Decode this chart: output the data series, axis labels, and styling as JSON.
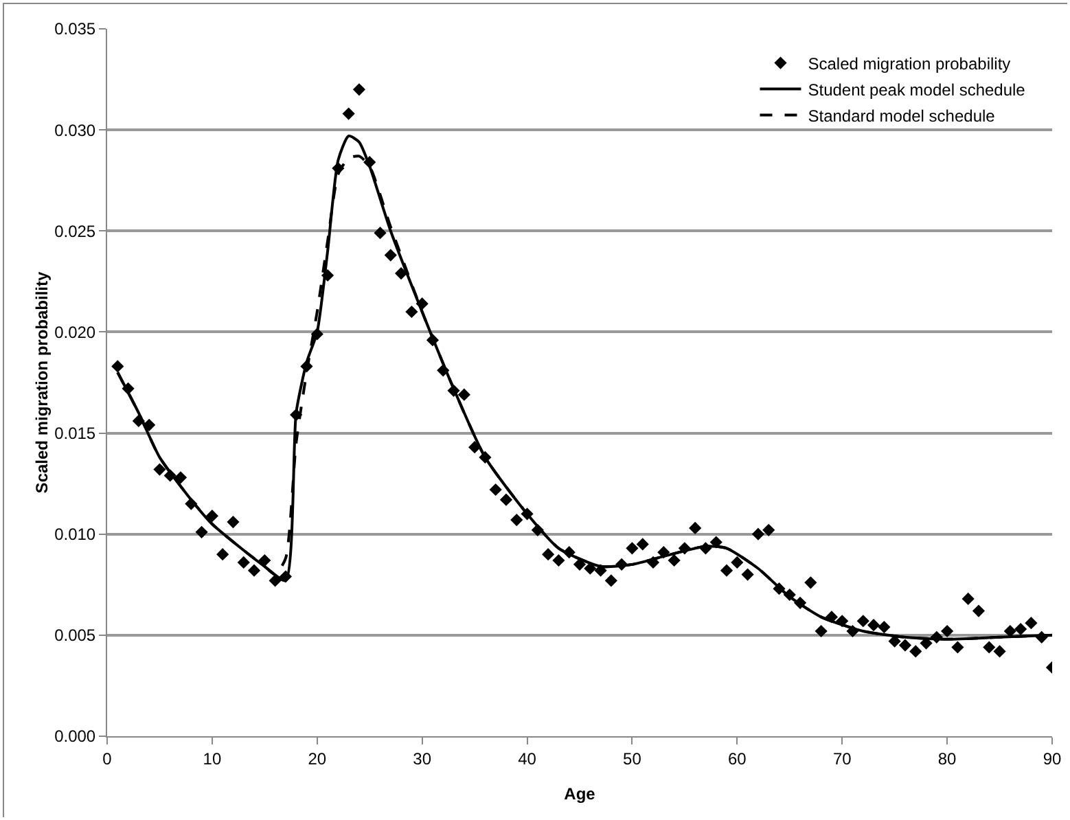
{
  "chart_data": {
    "type": "scatter",
    "xlabel": "Age",
    "ylabel": "Scaled migration probability",
    "xlim": [
      0,
      90
    ],
    "xticks": [
      0,
      10,
      20,
      30,
      40,
      50,
      60,
      70,
      80,
      90
    ],
    "ylim": [
      0,
      0.035
    ],
    "yticks": [
      {
        "value": 0,
        "label": "0.000"
      },
      {
        "value": 0.005,
        "label": "0.005"
      },
      {
        "value": 0.01,
        "label": "0.010"
      },
      {
        "value": 0.015,
        "label": "0.015"
      },
      {
        "value": 0.02,
        "label": "0.020"
      },
      {
        "value": 0.025,
        "label": "0.025"
      },
      {
        "value": 0.03,
        "label": "0.030"
      },
      {
        "value": 0.035,
        "label": "0.035"
      }
    ],
    "grid": "y",
    "legend": "top right",
    "series": [
      {
        "name": "Scaled migration probability",
        "marker": "diamond",
        "color": "#000000",
        "x": [
          1,
          2,
          3,
          4,
          5,
          6,
          7,
          8,
          9,
          10,
          11,
          12,
          13,
          14,
          15,
          16,
          17,
          18,
          19,
          20,
          21,
          22,
          23,
          24,
          25,
          26,
          27,
          28,
          29,
          30,
          31,
          32,
          33,
          34,
          35,
          36,
          37,
          38,
          39,
          40,
          41,
          42,
          43,
          44,
          45,
          46,
          47,
          48,
          49,
          50,
          51,
          52,
          53,
          54,
          55,
          56,
          57,
          58,
          59,
          60,
          61,
          62,
          63,
          64,
          65,
          66,
          67,
          68,
          69,
          70,
          71,
          72,
          73,
          74,
          75,
          76,
          77,
          78,
          79,
          80,
          81,
          82,
          83,
          84,
          85,
          86,
          87,
          88,
          89,
          90
        ],
        "values": [
          0.0183,
          0.0172,
          0.0156,
          0.0154,
          0.0132,
          0.0129,
          0.0128,
          0.0115,
          0.0101,
          0.0109,
          0.009,
          0.0106,
          0.0086,
          0.0082,
          0.0087,
          0.0077,
          0.0079,
          0.0159,
          0.0183,
          0.0199,
          0.0228,
          0.0281,
          0.0308,
          0.032,
          0.0284,
          0.0249,
          0.0238,
          0.0229,
          0.021,
          0.0214,
          0.0196,
          0.0181,
          0.0171,
          0.0169,
          0.0143,
          0.0138,
          0.0122,
          0.0117,
          0.0107,
          0.011,
          0.0102,
          0.009,
          0.0087,
          0.0091,
          0.0085,
          0.0083,
          0.0082,
          0.0077,
          0.0085,
          0.0093,
          0.0095,
          0.0086,
          0.0091,
          0.0087,
          0.0093,
          0.0103,
          0.0093,
          0.0096,
          0.0082,
          0.0086,
          0.008,
          0.01,
          0.0102,
          0.0073,
          0.007,
          0.0066,
          0.0076,
          0.0052,
          0.0059,
          0.0057,
          0.0052,
          0.0057,
          0.0055,
          0.0054,
          0.0047,
          0.0045,
          0.0042,
          0.0046,
          0.0049,
          0.0052,
          0.0044,
          0.0068,
          0.0062,
          0.0044,
          0.0042,
          0.0052,
          0.0053,
          0.0056,
          0.0049,
          0.0034
        ]
      },
      {
        "name": "Student peak model schedule",
        "type": "line",
        "line_style": "solid",
        "color": "#000000",
        "x": [
          1,
          3,
          5,
          8,
          10,
          13,
          15,
          17,
          18,
          19,
          20,
          21,
          22,
          23,
          24,
          25,
          27,
          30,
          33,
          36,
          40,
          43,
          47,
          50,
          53,
          57,
          59,
          62,
          65,
          68,
          72,
          76,
          80,
          85,
          90
        ],
        "values": [
          0.018,
          0.016,
          0.0138,
          0.0117,
          0.0105,
          0.0092,
          0.0084,
          0.0077,
          0.016,
          0.0185,
          0.02,
          0.024,
          0.0285,
          0.0297,
          0.0294,
          0.0282,
          0.025,
          0.021,
          0.0172,
          0.0138,
          0.011,
          0.0093,
          0.0084,
          0.0085,
          0.0089,
          0.0094,
          0.0093,
          0.0083,
          0.0069,
          0.0059,
          0.0052,
          0.0049,
          0.0048,
          0.0049,
          0.005
        ]
      },
      {
        "name": "Standard model schedule",
        "type": "line",
        "line_style": "dashed",
        "color": "#000000",
        "x": [
          1,
          3,
          5,
          8,
          10,
          13,
          15,
          16,
          17,
          18,
          19,
          20,
          21,
          22,
          23,
          24,
          25,
          27,
          30,
          33,
          36,
          40,
          43,
          47,
          50,
          53,
          57,
          59,
          62,
          65,
          68,
          72,
          76,
          80,
          85,
          90
        ],
        "values": [
          0.018,
          0.016,
          0.0138,
          0.0117,
          0.0105,
          0.0092,
          0.0084,
          0.008,
          0.0088,
          0.0145,
          0.018,
          0.021,
          0.0245,
          0.0278,
          0.0286,
          0.0287,
          0.0282,
          0.0252,
          0.021,
          0.0172,
          0.0138,
          0.011,
          0.0093,
          0.0084,
          0.0085,
          0.0089,
          0.0094,
          0.0093,
          0.0083,
          0.0069,
          0.0059,
          0.0052,
          0.0049,
          0.0048,
          0.0049,
          0.005
        ]
      }
    ]
  }
}
